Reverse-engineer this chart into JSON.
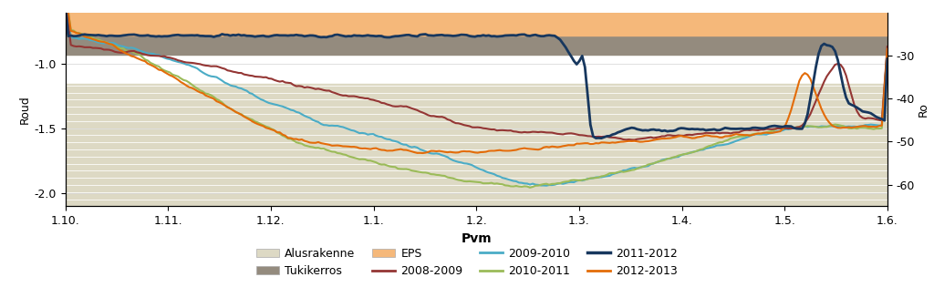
{
  "title": "",
  "xlabel": "Pvm",
  "ylabel_left": "Roud",
  "ylabel_right": "Ro",
  "xlim": [
    0,
    8
  ],
  "ylim_left": [
    -2.1,
    -0.6
  ],
  "ylim_right": [
    -65,
    -20
  ],
  "xtick_labels": [
    "1.10.",
    "1.11.",
    "1.12.",
    "1.1.",
    "1.2.",
    "1.3.",
    "1.4.",
    "1.5.",
    "1.6."
  ],
  "xtick_positions": [
    0,
    1,
    2,
    3,
    4,
    5,
    6,
    7,
    8
  ],
  "ytick_left": [
    -2.0,
    -1.5,
    -1.0
  ],
  "ytick_right": [
    -60,
    -50,
    -40,
    -30
  ],
  "background_color": "#ffffff",
  "alusrakenne_color": "#ddd9c4",
  "tukikerros_color": "#948b7e",
  "eps_color": "#f5b87a",
  "line_colors": {
    "2008-2009": "#943634",
    "2009-2010": "#4bacc6",
    "2010-2011": "#9bbb59",
    "2011-2012": "#17375e",
    "2012-2013": "#e36c09"
  },
  "alusrakenne_ymin": -2.1,
  "alusrakenne_ymax": -1.15,
  "tukikerros_ymin": -0.93,
  "tukikerros_ymax": -0.78,
  "eps_ymin": -0.78,
  "eps_ymax": -0.6,
  "stripe_ymin": -2.1,
  "stripe_ymax": -1.15,
  "stripe_step": 0.055,
  "stripe_color": "#ffffff",
  "stripe_linewidth": 0.7
}
